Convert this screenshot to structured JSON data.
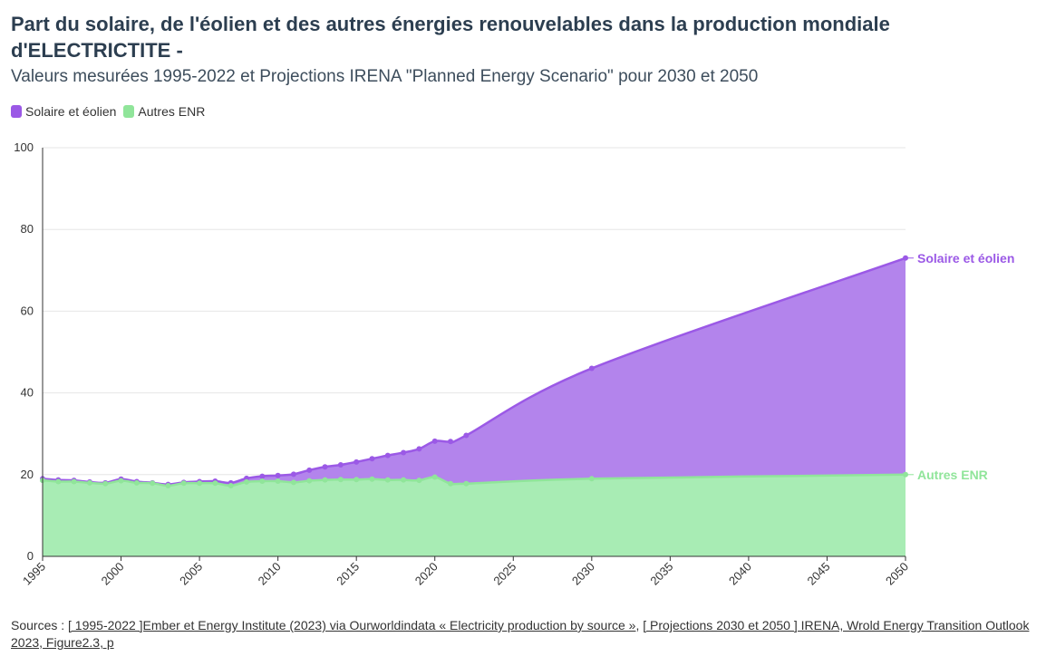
{
  "title": "Part du solaire, de l'éolien et des autres énergies renouvelables dans la production mondiale d'ELECTRICTITE -",
  "subtitle": "Valeurs mesurées 1995-2022 et Projections IRENA \"Planned Energy Scenario\" pour 2030 et 2050",
  "colors": {
    "solar_wind": "#9b59e6",
    "solar_wind_fill": "#b384ec",
    "other_renewables": "#90e59a",
    "other_renewables_fill": "#a8ecb4",
    "grid": "#e6e6e6",
    "axis": "#333333"
  },
  "sources": {
    "prefix": "Sources : ",
    "link1": "[ 1995-2022 ]Ember et Energy Institute (2023) via Ourworldindata « Electricity production by source »",
    "separator": ", ",
    "link2": "[ Projections 2030 et 2050 ] IRENA, Wrold Energy Transition Outlook 2023, Figure2.3, p"
  },
  "chart_data": {
    "type": "area",
    "stacked": false,
    "x": [
      1995,
      1996,
      1997,
      1998,
      1999,
      2000,
      2001,
      2002,
      2003,
      2004,
      2005,
      2006,
      2007,
      2008,
      2009,
      2010,
      2011,
      2012,
      2013,
      2014,
      2015,
      2016,
      2017,
      2018,
      2019,
      2020,
      2021,
      2022,
      2030,
      2050
    ],
    "series": [
      {
        "name": "Solaire et éolien",
        "color": "#9b59e6",
        "values": [
          19.0,
          18.7,
          18.6,
          18.2,
          18.0,
          18.9,
          18.3,
          18.0,
          17.6,
          18.1,
          18.3,
          18.4,
          18.0,
          19.1,
          19.6,
          19.8,
          20.1,
          21.1,
          21.9,
          22.4,
          23.1,
          23.9,
          24.7,
          25.4,
          26.3,
          28.2,
          28.1,
          29.6,
          46.0,
          73.0
        ]
      },
      {
        "name": "Autres ENR",
        "color": "#90e59a",
        "values": [
          18.6,
          18.3,
          18.3,
          18.0,
          17.8,
          18.5,
          18.0,
          17.9,
          17.3,
          17.9,
          17.9,
          17.9,
          17.3,
          18.2,
          18.4,
          18.4,
          18.1,
          18.5,
          18.7,
          18.8,
          18.8,
          18.9,
          18.7,
          18.7,
          18.6,
          19.4,
          17.8,
          17.8,
          19.0,
          20.0
        ]
      }
    ],
    "ylim": [
      0,
      100
    ],
    "yticks": [
      0,
      20,
      40,
      60,
      80,
      100
    ],
    "xlim": [
      1995,
      2050
    ],
    "xticks": [
      1995,
      2000,
      2005,
      2010,
      2015,
      2020,
      2025,
      2030,
      2035,
      2040,
      2045,
      2050
    ],
    "grid": true,
    "legend_position": "top-left",
    "end_labels": [
      "Solaire et éolien",
      "Autres ENR"
    ]
  }
}
